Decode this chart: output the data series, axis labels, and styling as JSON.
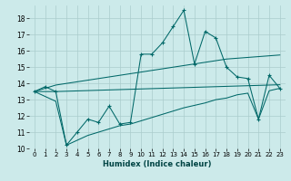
{
  "xlabel": "Humidex (Indice chaleur)",
  "bg_color": "#cceaea",
  "grid_color": "#aacccc",
  "line_color": "#006868",
  "x_values": [
    0,
    1,
    2,
    3,
    4,
    5,
    6,
    7,
    8,
    9,
    10,
    11,
    12,
    13,
    14,
    15,
    16,
    17,
    18,
    19,
    20,
    21,
    22,
    23
  ],
  "main_y": [
    13.5,
    13.8,
    13.5,
    10.2,
    11.0,
    11.8,
    11.6,
    12.6,
    11.5,
    11.6,
    15.8,
    15.8,
    16.5,
    17.5,
    18.5,
    15.2,
    17.2,
    16.8,
    15.0,
    14.4,
    14.3,
    11.8,
    14.5,
    13.7
  ],
  "upper_y": [
    13.5,
    13.7,
    13.9,
    14.0,
    14.1,
    14.2,
    14.3,
    14.4,
    14.5,
    14.6,
    14.7,
    14.8,
    14.9,
    15.0,
    15.1,
    15.2,
    15.3,
    15.4,
    15.5,
    15.55,
    15.6,
    15.65,
    15.7,
    15.75
  ],
  "mid_y": [
    13.5,
    13.5,
    13.5,
    13.52,
    13.54,
    13.56,
    13.58,
    13.6,
    13.62,
    13.64,
    13.66,
    13.68,
    13.7,
    13.72,
    13.74,
    13.76,
    13.78,
    13.8,
    13.82,
    13.84,
    13.86,
    13.88,
    13.9,
    13.92
  ],
  "lower_y": [
    13.5,
    13.2,
    12.9,
    10.2,
    10.5,
    10.8,
    11.0,
    11.2,
    11.4,
    11.5,
    11.7,
    11.9,
    12.1,
    12.3,
    12.5,
    12.65,
    12.8,
    13.0,
    13.1,
    13.3,
    13.4,
    11.8,
    13.55,
    13.7
  ],
  "ylim": [
    10,
    18.8
  ],
  "xlim": [
    -0.5,
    23.5
  ],
  "yticks": [
    10,
    11,
    12,
    13,
    14,
    15,
    16,
    17,
    18
  ],
  "xticks": [
    0,
    1,
    2,
    3,
    4,
    5,
    6,
    7,
    8,
    9,
    10,
    11,
    12,
    13,
    14,
    15,
    16,
    17,
    18,
    19,
    20,
    21,
    22,
    23
  ]
}
